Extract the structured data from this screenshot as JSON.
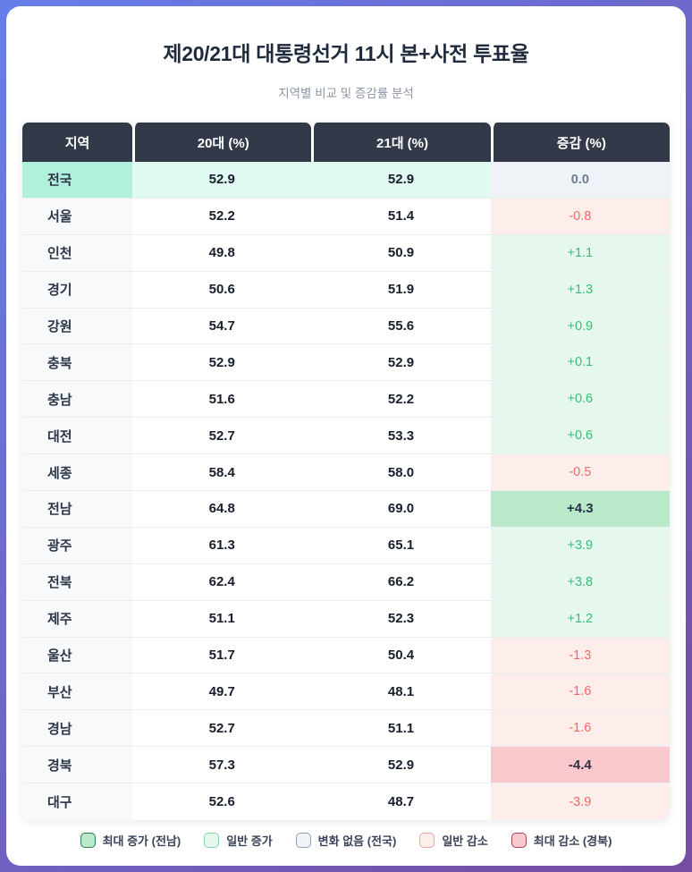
{
  "header": {
    "title": "제20/21대 대통령선거 11시 본+사전 투표율",
    "subtitle": "지역별 비교 및 증감률 분석"
  },
  "table": {
    "columns": [
      "지역",
      "20대 (%)",
      "21대 (%)",
      "증감 (%)"
    ],
    "rows": [
      {
        "region": "전국",
        "v20": "52.9",
        "v21": "52.9",
        "change": "0.0",
        "status": "zero",
        "national": true
      },
      {
        "region": "서울",
        "v20": "52.2",
        "v21": "51.4",
        "change": "-0.8",
        "status": "down"
      },
      {
        "region": "인천",
        "v20": "49.8",
        "v21": "50.9",
        "change": "+1.1",
        "status": "up"
      },
      {
        "region": "경기",
        "v20": "50.6",
        "v21": "51.9",
        "change": "+1.3",
        "status": "up"
      },
      {
        "region": "강원",
        "v20": "54.7",
        "v21": "55.6",
        "change": "+0.9",
        "status": "up"
      },
      {
        "region": "충북",
        "v20": "52.9",
        "v21": "52.9",
        "change": "+0.1",
        "status": "up"
      },
      {
        "region": "충남",
        "v20": "51.6",
        "v21": "52.2",
        "change": "+0.6",
        "status": "up"
      },
      {
        "region": "대전",
        "v20": "52.7",
        "v21": "53.3",
        "change": "+0.6",
        "status": "up"
      },
      {
        "region": "세종",
        "v20": "58.4",
        "v21": "58.0",
        "change": "-0.5",
        "status": "down"
      },
      {
        "region": "전남",
        "v20": "64.8",
        "v21": "69.0",
        "change": "+4.3",
        "status": "max-up"
      },
      {
        "region": "광주",
        "v20": "61.3",
        "v21": "65.1",
        "change": "+3.9",
        "status": "up"
      },
      {
        "region": "전북",
        "v20": "62.4",
        "v21": "66.2",
        "change": "+3.8",
        "status": "up"
      },
      {
        "region": "제주",
        "v20": "51.1",
        "v21": "52.3",
        "change": "+1.2",
        "status": "up"
      },
      {
        "region": "울산",
        "v20": "51.7",
        "v21": "50.4",
        "change": "-1.3",
        "status": "down"
      },
      {
        "region": "부산",
        "v20": "49.7",
        "v21": "48.1",
        "change": "-1.6",
        "status": "down"
      },
      {
        "region": "경남",
        "v20": "52.7",
        "v21": "51.1",
        "change": "-1.6",
        "status": "down"
      },
      {
        "region": "경북",
        "v20": "57.3",
        "v21": "52.9",
        "change": "-4.4",
        "status": "max-down"
      },
      {
        "region": "대구",
        "v20": "52.6",
        "v21": "48.7",
        "change": "-3.9",
        "status": "down"
      }
    ]
  },
  "legend": {
    "items": [
      {
        "label": "최대 증가 (전남)",
        "fill": "#b9e9c8",
        "border": "#2f7d52"
      },
      {
        "label": "일반 증가",
        "fill": "#e6f8ee",
        "border": "#82d9a6"
      },
      {
        "label": "변화 없음 (전국)",
        "fill": "#eff3f8",
        "border": "#8fa3b8"
      },
      {
        "label": "일반 감소",
        "fill": "#fdeeec",
        "border": "#f2a39c"
      },
      {
        "label": "최대 감소 (경북)",
        "fill": "#f8c8cd",
        "border": "#aa4350"
      }
    ]
  },
  "colors": {
    "header_bg": "#323a49",
    "gradient_start": "#667eea",
    "gradient_end": "#764ba2",
    "national_region_bg": "#b0f0dd",
    "national_value_bg": "#e0faf2",
    "up_bg": "#e6f8ee",
    "up_fg": "#3cba78",
    "down_bg": "#fdeeec",
    "down_fg": "#f2695e",
    "zero_bg": "#eff3f8",
    "zero_fg": "#6e7d91",
    "max_up_bg": "#b9e9c8",
    "max_down_bg": "#f8c8cd"
  },
  "chart_data": {
    "type": "table",
    "title": "제20/21대 대통령선거 11시 본+사전 투표율",
    "subtitle": "지역별 비교 및 증감률 분석",
    "columns": [
      "지역",
      "20대 (%)",
      "21대 (%)",
      "증감 (%)"
    ],
    "regions": [
      "전국",
      "서울",
      "인천",
      "경기",
      "강원",
      "충북",
      "충남",
      "대전",
      "세종",
      "전남",
      "광주",
      "전북",
      "제주",
      "울산",
      "부산",
      "경남",
      "경북",
      "대구"
    ],
    "series": [
      {
        "name": "20대 (%)",
        "values": [
          52.9,
          52.2,
          49.8,
          50.6,
          54.7,
          52.9,
          51.6,
          52.7,
          58.4,
          64.8,
          61.3,
          62.4,
          51.1,
          51.7,
          49.7,
          52.7,
          57.3,
          52.6
        ]
      },
      {
        "name": "21대 (%)",
        "values": [
          52.9,
          51.4,
          50.9,
          51.9,
          55.6,
          52.9,
          52.2,
          53.3,
          58.0,
          69.0,
          65.1,
          66.2,
          52.3,
          50.4,
          48.1,
          51.1,
          52.9,
          48.7
        ]
      },
      {
        "name": "증감 (%)",
        "values": [
          0.0,
          -0.8,
          1.1,
          1.3,
          0.9,
          0.1,
          0.6,
          0.6,
          -0.5,
          4.3,
          3.9,
          3.8,
          1.2,
          -1.3,
          -1.6,
          -1.6,
          -4.4,
          -3.9
        ]
      }
    ],
    "annotations": {
      "max_increase": "전남 +4.3",
      "max_decrease": "경북 -4.4",
      "no_change": "전국 0.0"
    }
  }
}
